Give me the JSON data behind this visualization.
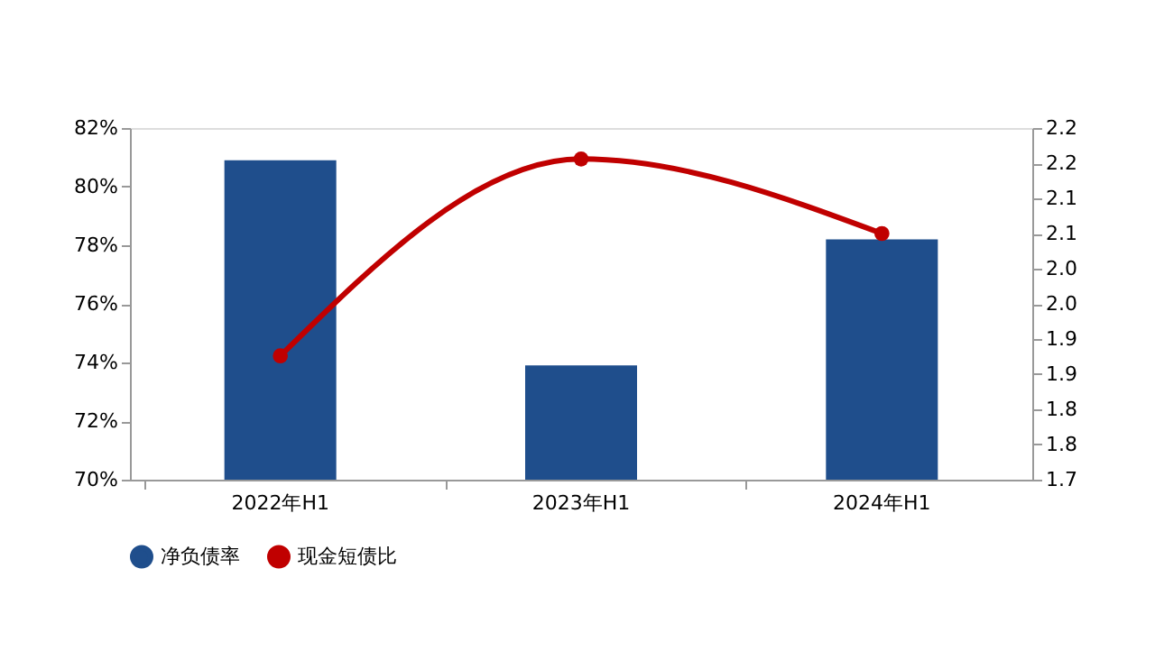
{
  "chart_data": {
    "type": "bar",
    "categories": [
      "2022年H1",
      "2023年H1",
      "2024年H1"
    ],
    "series": [
      {
        "name": "净负债率",
        "color": "#1f4e8c",
        "values": [
          80.9,
          73.9,
          78.2
        ]
      },
      {
        "name": "现金短债比",
        "type": "line",
        "axis": "y2",
        "color": "#c00000",
        "values": [
          1.876,
          2.156,
          2.05
        ]
      }
    ],
    "ylim": [
      70,
      82
    ],
    "yticks": [
      {
        "value": 70,
        "label": "70%"
      },
      {
        "value": 72,
        "label": "72%"
      },
      {
        "value": 74,
        "label": "74%"
      },
      {
        "value": 76,
        "label": "76%"
      },
      {
        "value": 78,
        "label": "78%"
      },
      {
        "value": 80,
        "label": "80%"
      },
      {
        "value": 82,
        "label": "82%"
      }
    ],
    "y2lim": [
      1.7,
      2.2
    ],
    "y2ticks": [
      {
        "value": 1.7,
        "label": "1.7"
      },
      {
        "value": 1.75,
        "label": "1.8"
      },
      {
        "value": 1.8,
        "label": "1.8"
      },
      {
        "value": 1.85,
        "label": "1.9"
      },
      {
        "value": 1.9,
        "label": "1.9"
      },
      {
        "value": 1.95,
        "label": "2.0"
      },
      {
        "value": 2.0,
        "label": "2.0"
      },
      {
        "value": 2.05,
        "label": "2.1"
      },
      {
        "value": 2.1,
        "label": "2.1"
      },
      {
        "value": 2.15,
        "label": "2.2"
      },
      {
        "value": 2.2,
        "label": "2.2"
      }
    ],
    "marker": "circle",
    "grid": false,
    "legend": "bottom"
  }
}
